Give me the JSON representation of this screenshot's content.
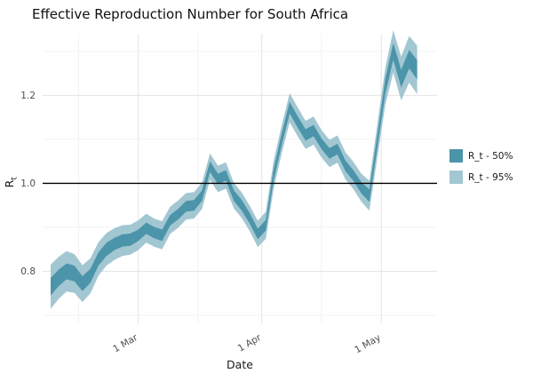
{
  "title": "Effective Reproduction Number for South Africa",
  "axes": {
    "x_label": "Date",
    "y_label_base": "R",
    "y_label_sub": "t"
  },
  "legend": {
    "items": [
      {
        "label": "R_t - 50%",
        "color": "#4c94a9"
      },
      {
        "label": "R_t - 95%",
        "color": "#a2c7d2"
      }
    ]
  },
  "chart_data": {
    "type": "area",
    "title": "Effective Reproduction Number for South Africa",
    "xlabel": "Date",
    "ylabel": "R_t",
    "description": "Estimated effective reproduction number R_t over time with 50% and 95% credible interval ribbons; horizontal reference line at R_t = 1.0",
    "x_unit": "days since 8 Feb",
    "xlim_days": [
      -2,
      97
    ],
    "ylim": [
      0.68,
      1.34
    ],
    "x_ticks": [
      {
        "day": 22,
        "label": "1 Mar"
      },
      {
        "day": 53,
        "label": "1 Apr"
      },
      {
        "day": 83,
        "label": "1 May"
      }
    ],
    "x_minor_days": [
      7,
      37,
      68
    ],
    "y_ticks": [
      0.8,
      1.0,
      1.2
    ],
    "y_minor": [
      0.7,
      0.9,
      1.1,
      1.3
    ],
    "reference_line_y": 1.0,
    "x_days": [
      0,
      2,
      4,
      6,
      8,
      10,
      12,
      14,
      16,
      18,
      20,
      22,
      24,
      26,
      28,
      30,
      32,
      34,
      36,
      38,
      40,
      42,
      44,
      46,
      48,
      50,
      52,
      54,
      56,
      58,
      60,
      62,
      64,
      66,
      68,
      70,
      72,
      74,
      76,
      78,
      80,
      82,
      84,
      86,
      88,
      90,
      92
    ],
    "median": [
      0.765,
      0.785,
      0.8,
      0.795,
      0.772,
      0.79,
      0.828,
      0.85,
      0.862,
      0.87,
      0.872,
      0.882,
      0.898,
      0.888,
      0.882,
      0.916,
      0.93,
      0.948,
      0.95,
      0.972,
      1.038,
      1.01,
      1.018,
      0.972,
      0.95,
      0.92,
      0.885,
      0.905,
      1.02,
      1.1,
      1.172,
      1.14,
      1.11,
      1.12,
      1.09,
      1.068,
      1.078,
      1.04,
      1.018,
      0.99,
      0.972,
      1.095,
      1.22,
      1.3,
      1.238,
      1.282,
      1.258
    ],
    "ci50_halfwidth": [
      0.02,
      0.019,
      0.018,
      0.018,
      0.017,
      0.016,
      0.015,
      0.015,
      0.014,
      0.014,
      0.014,
      0.013,
      0.013,
      0.013,
      0.013,
      0.012,
      0.012,
      0.012,
      0.012,
      0.012,
      0.012,
      0.012,
      0.012,
      0.012,
      0.012,
      0.012,
      0.012,
      0.012,
      0.013,
      0.013,
      0.013,
      0.013,
      0.013,
      0.013,
      0.012,
      0.012,
      0.012,
      0.012,
      0.012,
      0.013,
      0.014,
      0.015,
      0.017,
      0.019,
      0.02,
      0.021,
      0.022
    ],
    "ci95_halfwidth": [
      0.05,
      0.048,
      0.046,
      0.044,
      0.042,
      0.04,
      0.038,
      0.037,
      0.036,
      0.035,
      0.034,
      0.034,
      0.033,
      0.032,
      0.032,
      0.031,
      0.031,
      0.03,
      0.03,
      0.03,
      0.03,
      0.03,
      0.03,
      0.029,
      0.029,
      0.029,
      0.03,
      0.031,
      0.032,
      0.032,
      0.033,
      0.033,
      0.032,
      0.032,
      0.031,
      0.031,
      0.031,
      0.031,
      0.031,
      0.032,
      0.034,
      0.038,
      0.042,
      0.048,
      0.05,
      0.053,
      0.055
    ],
    "colors": {
      "ci50": "#4c94a9",
      "ci95": "#a2c7d2",
      "reference": "#000000",
      "grid_major": "#e4e4e4",
      "grid_minor": "#f2f2f2",
      "tick_text": "#4d4d4d"
    },
    "legend_position": "right",
    "grid": true
  }
}
